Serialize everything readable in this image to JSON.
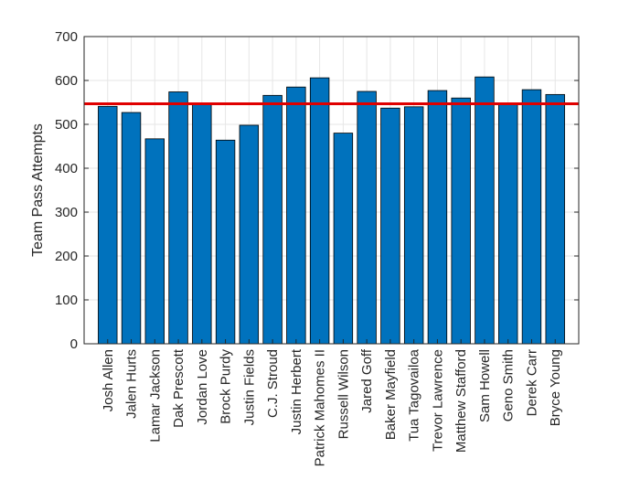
{
  "chart_data": {
    "type": "bar",
    "ylabel": "Team Pass Attempts",
    "ylim": [
      0,
      700
    ],
    "yticks": [
      0,
      100,
      200,
      300,
      400,
      500,
      600,
      700
    ],
    "grid": true,
    "categories": [
      "Josh Allen",
      "Jalen Hurts",
      "Lamar Jackson",
      "Dak Prescott",
      "Jordan Love",
      "Brock Purdy",
      "Justin Fields",
      "C.J. Stroud",
      "Justin Herbert",
      "Patrick Mahomes II",
      "Russell Wilson",
      "Jared Goff",
      "Baker Mayfield",
      "Tua Tagovailoa",
      "Trevor Lawrence",
      "Matthew Stafford",
      "Sam Howell",
      "Geno Smith",
      "Derek Carr",
      "Bryce Young"
    ],
    "values": [
      541,
      527,
      467,
      574,
      549,
      464,
      498,
      566,
      585,
      606,
      480,
      575,
      537,
      540,
      577,
      560,
      608,
      547,
      579,
      568
    ],
    "reference_line": {
      "value": 547
    },
    "colors": {
      "bar": "#0072BD",
      "reference_line": "#E00000",
      "grid": "#e6e6e6",
      "axis": "#262626"
    }
  }
}
